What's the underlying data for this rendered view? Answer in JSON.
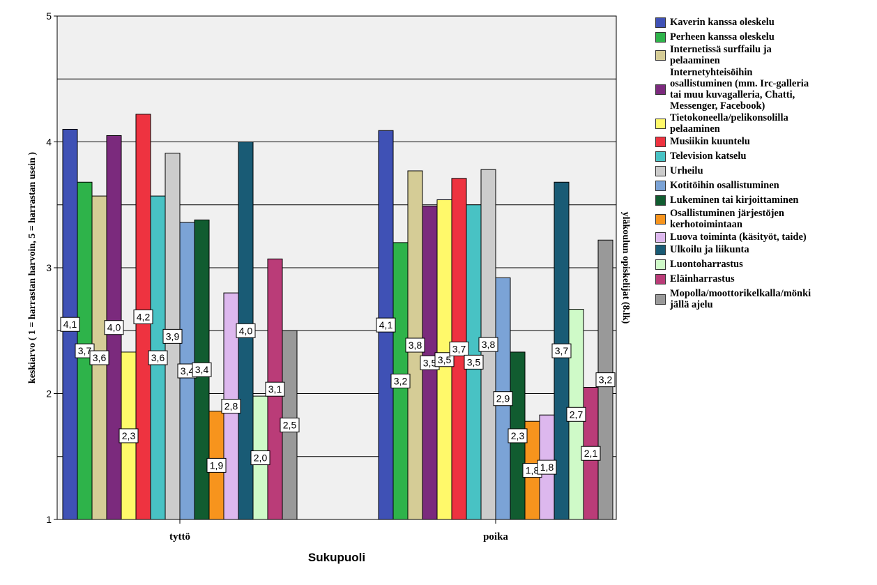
{
  "chart_data": {
    "type": "bar",
    "title": "",
    "xlabel": "Sukupuoli",
    "ylabel": "keskiarvo ( 1 = harrastan harvoin, 5 = harrastan usein )",
    "panel_label": "yläkoulun opiskelijat (8.lk)",
    "ylim": [
      1,
      5
    ],
    "yticks": [
      "1",
      "2",
      "3",
      "4",
      "5"
    ],
    "grid": true,
    "legend_position": "right",
    "categories": [
      "tyttö",
      "poika"
    ],
    "series": [
      {
        "name": "Kaverin kanssa oleskelu",
        "color": "#3F51B5",
        "values": [
          4.1,
          4.09
        ],
        "labels": [
          "4,1",
          "4,1"
        ]
      },
      {
        "name": "Perheen kanssa oleskelu",
        "color": "#2EB34A",
        "values": [
          3.68,
          3.2
        ],
        "labels": [
          "3,7",
          "3,2"
        ]
      },
      {
        "name": "Internetissä surffailu ja pelaaminen",
        "color": "#D5CC96",
        "values": [
          3.57,
          3.77
        ],
        "labels": [
          "3,6",
          "3,8"
        ]
      },
      {
        "name": "Internetyhteisöihin osallistuminen (mm. Irc-galleria tai muu kuvagalleria, Chatti, Messenger, Facebook)",
        "color": "#7B2A7D",
        "values": [
          4.05,
          3.49
        ],
        "labels": [
          "4,0",
          "3,5"
        ]
      },
      {
        "name": "Tietokoneella/pelikonsolilla pelaaminen",
        "color": "#FFF96A",
        "values": [
          2.33,
          3.54
        ],
        "labels": [
          "2,3",
          "3,5"
        ]
      },
      {
        "name": "Musiikin kuuntelu",
        "color": "#EE3340",
        "values": [
          4.22,
          3.71
        ],
        "labels": [
          "4,2",
          "3,7"
        ]
      },
      {
        "name": "Television katselu",
        "color": "#48C2C4",
        "values": [
          3.57,
          3.5
        ],
        "labels": [
          "3,6",
          "3,5"
        ]
      },
      {
        "name": "Urheilu",
        "color": "#CCCCCC",
        "values": [
          3.91,
          3.78
        ],
        "labels": [
          "3,9",
          "3,8"
        ]
      },
      {
        "name": "Kotitöihin osallistuminen",
        "color": "#7BA3D6",
        "values": [
          3.36,
          2.92
        ],
        "labels": [
          "3,4",
          "2,9"
        ]
      },
      {
        "name": "Lukeminen tai kirjoittaminen",
        "color": "#115C30",
        "values": [
          3.38,
          2.33
        ],
        "labels": [
          "3,4",
          "2,3"
        ]
      },
      {
        "name": "Osallistuminen järjestöjen kerhotoimintaan",
        "color": "#F7941D",
        "values": [
          1.86,
          1.78
        ],
        "labels": [
          "1,9",
          "1,8"
        ]
      },
      {
        "name": "Luova toiminta (käsityöt, taide)",
        "color": "#DDB8EE",
        "values": [
          2.8,
          1.83
        ],
        "labels": [
          "2,8",
          "1,8"
        ]
      },
      {
        "name": "Ulkoilu ja liikunta",
        "color": "#195B75",
        "values": [
          4.0,
          3.68
        ],
        "labels": [
          "4,0",
          "3,7"
        ]
      },
      {
        "name": "Luontoharrastus",
        "color": "#CFFAC8",
        "values": [
          1.98,
          2.67
        ],
        "labels": [
          "2,0",
          "2,7"
        ]
      },
      {
        "name": "Eläinharrastus",
        "color": "#BA3C78",
        "values": [
          3.07,
          2.05
        ],
        "labels": [
          "3,1",
          "2,1"
        ]
      },
      {
        "name": "Mopolla/moottorikelkalla/mönkijällä ajelu",
        "color": "#999999",
        "values": [
          2.5,
          3.22
        ],
        "labels": [
          "2,5",
          "3,2"
        ]
      }
    ],
    "legend_lines": [
      [
        "Kaverin kanssa oleskelu"
      ],
      [
        "Perheen kanssa oleskelu"
      ],
      [
        "Internetissä surffailu ja",
        "pelaaminen"
      ],
      [
        "Internetyhteisöihin",
        "osallistuminen (mm. Irc-galleria",
        "tai muu kuvagalleria, Chatti,",
        "Messenger, Facebook)"
      ],
      [
        "Tietokoneella/pelikonsolilla",
        "pelaaminen"
      ],
      [
        "Musiikin kuuntelu"
      ],
      [
        "Television katselu"
      ],
      [
        "Urheilu"
      ],
      [
        "Kotitöihin osallistuminen"
      ],
      [
        "Lukeminen tai kirjoittaminen"
      ],
      [
        "Osallistuminen järjestöjen",
        "kerhotoimintaan"
      ],
      [
        "Luova toiminta (käsityöt, taide)"
      ],
      [
        "Ulkoilu ja liikunta"
      ],
      [
        "Luontoharrastus"
      ],
      [
        "Eläinharrastus"
      ],
      [
        "Mopolla/moottorikelkalla/mönki",
        "jällä ajelu"
      ]
    ]
  }
}
